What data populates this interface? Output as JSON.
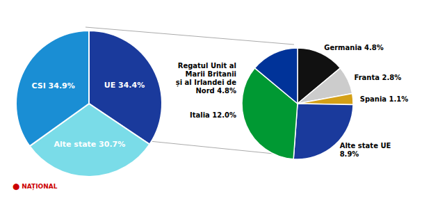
{
  "chart_data": [
    {
      "type": "pie",
      "categories": [
        "UE 34.4%",
        "Alte state 30.7%",
        "CSI 34.9%"
      ],
      "values": [
        34.4,
        30.7,
        34.9
      ],
      "colors": [
        "#1a3a9c",
        "#7adce8",
        "#1a8ed4"
      ],
      "annotations": [
        {
          "text": "⬤ NAȚIONAL",
          "color": "#cc0000"
        }
      ]
    },
    {
      "type": "pie",
      "categories": [
        "Germania 4.8%",
        "Franta 2.8%",
        "Spania 1.1%",
        "Alte state UE\n8.9%",
        "Italia 12.0%",
        "Regatul Unit al\nMarii Britanii\nși al Irlandei de\nNord 4.8%"
      ],
      "values": [
        4.8,
        2.8,
        1.1,
        8.9,
        12.0,
        4.8
      ],
      "colors": [
        "#111111",
        "#cccccc",
        "#d4a017",
        "#1a3a9c",
        "#009933",
        "#003399"
      ]
    }
  ]
}
